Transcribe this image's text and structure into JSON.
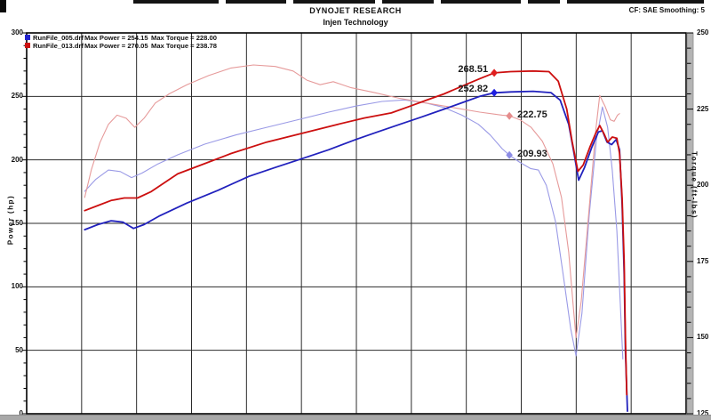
{
  "window": {
    "top_strip_segments": [
      [
        150,
        96
      ],
      [
        254,
        68
      ],
      [
        330,
        92
      ],
      [
        430,
        58
      ],
      [
        496,
        90
      ],
      [
        594,
        36
      ],
      [
        638,
        154
      ]
    ]
  },
  "header": {
    "title": "DYNOJET RESEARCH",
    "subtitle": "Injen Technology",
    "correction": "CF: SAE  Smoothing: 5"
  },
  "legend": {
    "rows": [
      {
        "swatch_color": "#2222cc",
        "file": "RunFile_005.drf",
        "max_power": "Max Power = 254.15",
        "max_torque": "Max Torque = 228.00"
      },
      {
        "swatch_color": "#cc1111",
        "file": "RunFile_013.drf",
        "max_power": "Max Power = 270.05",
        "max_torque": "Max Torque = 238.78"
      }
    ]
  },
  "chart_data": {
    "type": "line",
    "title": "DYNOJET RESEARCH",
    "subtitle": "Injen Technology",
    "note": "CF: SAE  Smoothing: 5",
    "x_axis": {
      "label": "",
      "tick_labels_visible": false,
      "gridline_columns": 12
    },
    "left_axis": {
      "label": "Power (hp)",
      "min": 0,
      "max": 300,
      "major_ticks": [
        300,
        250,
        200,
        150,
        100,
        50,
        0
      ],
      "minor_step": 10
    },
    "right_axis": {
      "label": "Torque (ft-lbs)",
      "min": 125,
      "max": 250,
      "major_ticks": [
        250,
        225,
        200,
        175,
        150,
        125
      ],
      "minor_step": 5
    },
    "grid": "on",
    "series": [
      {
        "name": "RunFile_005.drf Torque",
        "axis": "right",
        "color": "#9a9ae6",
        "stroke_width": 1.1,
        "points": [
          [
            0.088,
            198
          ],
          [
            0.105,
            202
          ],
          [
            0.124,
            205
          ],
          [
            0.142,
            204.5
          ],
          [
            0.159,
            202.5
          ],
          [
            0.175,
            204
          ],
          [
            0.199,
            207
          ],
          [
            0.229,
            210
          ],
          [
            0.27,
            213.5
          ],
          [
            0.317,
            216.5
          ],
          [
            0.364,
            219
          ],
          [
            0.411,
            221.5
          ],
          [
            0.458,
            224
          ],
          [
            0.499,
            226
          ],
          [
            0.539,
            227.5
          ],
          [
            0.573,
            228
          ],
          [
            0.606,
            227
          ],
          [
            0.633,
            225.5
          ],
          [
            0.66,
            223
          ],
          [
            0.685,
            220
          ],
          [
            0.703,
            216.5
          ],
          [
            0.721,
            212
          ],
          [
            0.732,
            209.9
          ],
          [
            0.748,
            207.5
          ],
          [
            0.764,
            205.5
          ],
          [
            0.776,
            205
          ],
          [
            0.788,
            200
          ],
          [
            0.802,
            188
          ],
          [
            0.814,
            170
          ],
          [
            0.825,
            153
          ],
          [
            0.833,
            144
          ],
          [
            0.842,
            158
          ],
          [
            0.853,
            190
          ],
          [
            0.864,
            215
          ],
          [
            0.873,
            225.7
          ],
          [
            0.881,
            219
          ],
          [
            0.888,
            205
          ],
          [
            0.895,
            185
          ],
          [
            0.9,
            162
          ],
          [
            0.904,
            143
          ]
        ]
      },
      {
        "name": "RunFile_013.drf Torque",
        "axis": "right",
        "color": "#e69a9a",
        "stroke_width": 1.1,
        "points": [
          [
            0.088,
            196
          ],
          [
            0.098,
            205
          ],
          [
            0.111,
            214
          ],
          [
            0.124,
            220
          ],
          [
            0.137,
            223
          ],
          [
            0.151,
            222
          ],
          [
            0.164,
            219
          ],
          [
            0.178,
            222
          ],
          [
            0.195,
            227
          ],
          [
            0.216,
            230
          ],
          [
            0.243,
            233
          ],
          [
            0.276,
            236
          ],
          [
            0.31,
            238.5
          ],
          [
            0.344,
            239.5
          ],
          [
            0.377,
            239
          ],
          [
            0.404,
            237.5
          ],
          [
            0.425,
            234.5
          ],
          [
            0.445,
            233
          ],
          [
            0.465,
            234
          ],
          [
            0.492,
            232
          ],
          [
            0.526,
            230.5
          ],
          [
            0.566,
            228.5
          ],
          [
            0.606,
            227
          ],
          [
            0.647,
            225.5
          ],
          [
            0.687,
            224
          ],
          [
            0.721,
            223
          ],
          [
            0.732,
            222.8
          ],
          [
            0.748,
            221.5
          ],
          [
            0.765,
            219
          ],
          [
            0.782,
            214.5
          ],
          [
            0.798,
            207
          ],
          [
            0.811,
            196
          ],
          [
            0.822,
            178
          ],
          [
            0.829,
            160
          ],
          [
            0.833,
            150
          ],
          [
            0.841,
            162
          ],
          [
            0.852,
            190
          ],
          [
            0.863,
            218
          ],
          [
            0.869,
            229.5
          ],
          [
            0.877,
            226
          ],
          [
            0.885,
            221.5
          ],
          [
            0.891,
            221
          ],
          [
            0.896,
            223
          ],
          [
            0.899,
            223.5
          ]
        ]
      },
      {
        "name": "RunFile_005.drf Power",
        "axis": "left",
        "color": "#2121bd",
        "stroke_width": 1.8,
        "points": [
          [
            0.088,
            145
          ],
          [
            0.108,
            149
          ],
          [
            0.128,
            152
          ],
          [
            0.146,
            151
          ],
          [
            0.162,
            146
          ],
          [
            0.178,
            149
          ],
          [
            0.202,
            156
          ],
          [
            0.243,
            166
          ],
          [
            0.29,
            176
          ],
          [
            0.337,
            187
          ],
          [
            0.377,
            194
          ],
          [
            0.418,
            201
          ],
          [
            0.458,
            208
          ],
          [
            0.499,
            216
          ],
          [
            0.532,
            222
          ],
          [
            0.566,
            228
          ],
          [
            0.6,
            234
          ],
          [
            0.633,
            240
          ],
          [
            0.66,
            245
          ],
          [
            0.687,
            250
          ],
          [
            0.709,
            252.8
          ],
          [
            0.734,
            253.5
          ],
          [
            0.768,
            254
          ],
          [
            0.795,
            253
          ],
          [
            0.809,
            247
          ],
          [
            0.822,
            228
          ],
          [
            0.83,
            205
          ],
          [
            0.837,
            184
          ],
          [
            0.846,
            194
          ],
          [
            0.857,
            210
          ],
          [
            0.867,
            222
          ],
          [
            0.873,
            223
          ],
          [
            0.88,
            214
          ],
          [
            0.887,
            212
          ],
          [
            0.894,
            216
          ],
          [
            0.899,
            208
          ],
          [
            0.903,
            165
          ],
          [
            0.906,
            110
          ],
          [
            0.908,
            50
          ],
          [
            0.911,
            2
          ]
        ]
      },
      {
        "name": "RunFile_013.drf Power",
        "axis": "left",
        "color": "#cc0f0f",
        "stroke_width": 1.8,
        "points": [
          [
            0.088,
            160
          ],
          [
            0.108,
            164
          ],
          [
            0.128,
            168
          ],
          [
            0.148,
            170
          ],
          [
            0.168,
            170
          ],
          [
            0.189,
            175
          ],
          [
            0.229,
            189
          ],
          [
            0.27,
            197
          ],
          [
            0.31,
            205
          ],
          [
            0.364,
            214
          ],
          [
            0.418,
            221
          ],
          [
            0.472,
            228
          ],
          [
            0.512,
            233
          ],
          [
            0.553,
            237
          ],
          [
            0.58,
            242
          ],
          [
            0.606,
            247
          ],
          [
            0.633,
            252
          ],
          [
            0.66,
            258
          ],
          [
            0.687,
            264
          ],
          [
            0.709,
            268.5
          ],
          [
            0.734,
            269.5
          ],
          [
            0.768,
            270
          ],
          [
            0.792,
            269.5
          ],
          [
            0.806,
            262
          ],
          [
            0.819,
            240
          ],
          [
            0.827,
            215
          ],
          [
            0.836,
            191
          ],
          [
            0.844,
            196
          ],
          [
            0.854,
            210
          ],
          [
            0.863,
            221
          ],
          [
            0.869,
            227
          ],
          [
            0.876,
            220
          ],
          [
            0.881,
            214
          ],
          [
            0.888,
            218
          ],
          [
            0.895,
            217
          ],
          [
            0.899,
            205
          ],
          [
            0.903,
            170
          ],
          [
            0.906,
            120
          ],
          [
            0.908,
            60
          ],
          [
            0.91,
            15
          ]
        ]
      }
    ],
    "point_markers": [
      {
        "label": "268.51",
        "axis": "left",
        "value": 268.51,
        "x": 0.709,
        "color": "#e01f1f",
        "label_side": "left"
      },
      {
        "label": "252.82",
        "axis": "left",
        "value": 252.82,
        "x": 0.709,
        "color": "#1f1fe0",
        "label_side": "left"
      },
      {
        "label": "222.75",
        "axis": "right",
        "value": 222.75,
        "x": 0.732,
        "color": "#e58c8c",
        "label_side": "right"
      },
      {
        "label": "209.93",
        "axis": "right",
        "value": 209.93,
        "x": 0.732,
        "color": "#8c8ce5",
        "label_side": "right"
      }
    ]
  },
  "colors": {
    "grid": "#2b2b2b",
    "frame": "#000000",
    "chrome_gray": "#b4b4b4",
    "tick": "#000000"
  }
}
